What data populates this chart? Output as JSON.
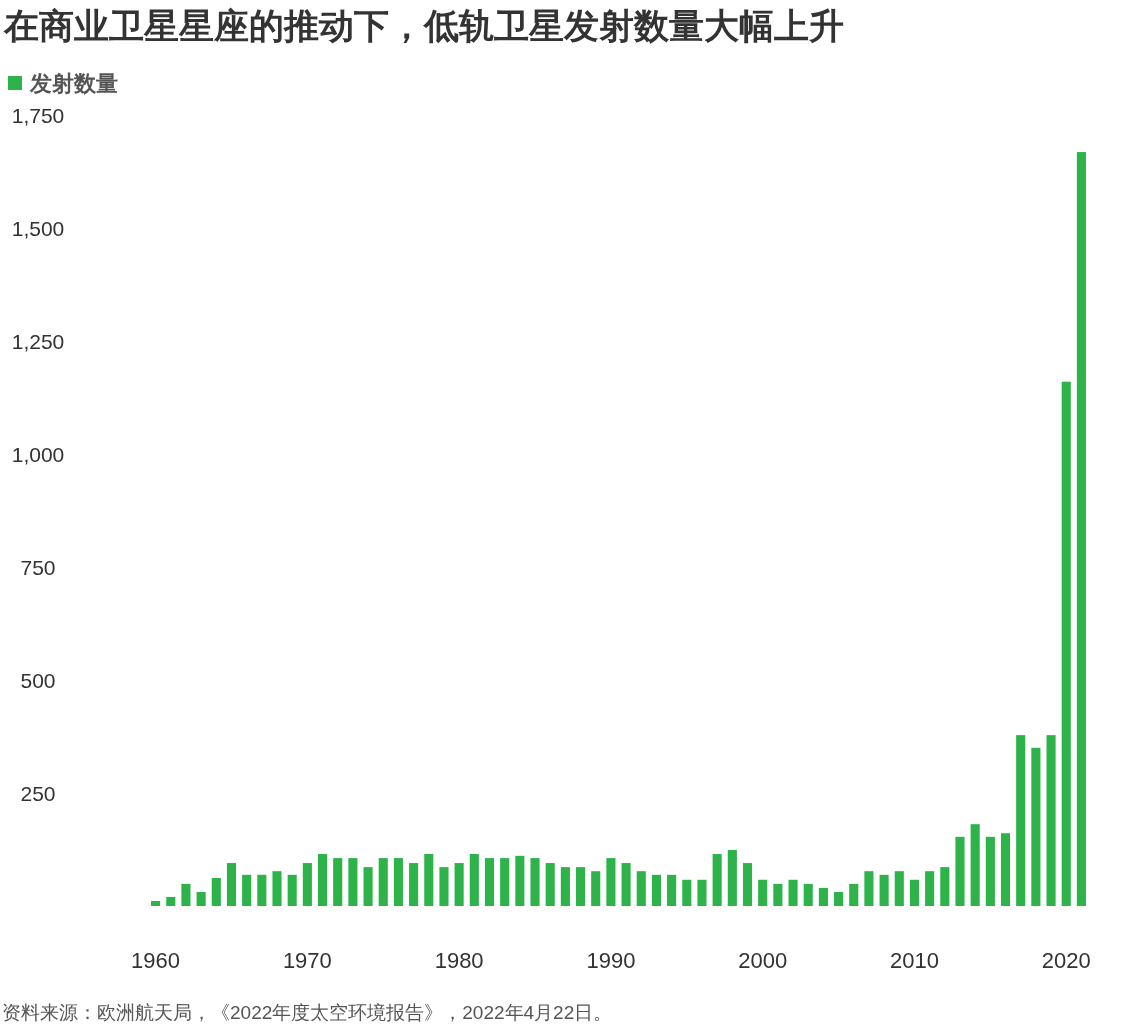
{
  "chart_data": {
    "type": "bar",
    "title": "在商业卫星星座的推动下，低轨卫星发射数量大幅上升",
    "categories": [
      "1960",
      null,
      null,
      null,
      null,
      null,
      null,
      null,
      null,
      null,
      "1970",
      null,
      null,
      null,
      null,
      null,
      null,
      null,
      null,
      null,
      "1980",
      null,
      null,
      null,
      null,
      null,
      null,
      null,
      null,
      null,
      "1990",
      null,
      null,
      null,
      null,
      null,
      null,
      null,
      null,
      null,
      "2000",
      null,
      null,
      null,
      null,
      null,
      null,
      null,
      null,
      null,
      "2010",
      null,
      null,
      null,
      null,
      null,
      null,
      null,
      null,
      null,
      "2020",
      null
    ],
    "series": [
      {
        "name": "发射数量",
        "color": "#2db34a",
        "values": [
          11,
          20,
          49,
          31,
          62,
          95,
          69,
          69,
          77,
          69,
          95,
          115,
          106,
          106,
          86,
          106,
          106,
          95,
          115,
          86,
          95,
          115,
          106,
          106,
          111,
          106,
          95,
          86,
          86,
          77,
          106,
          95,
          77,
          69,
          69,
          58,
          58,
          115,
          124,
          95,
          58,
          49,
          58,
          49,
          40,
          31,
          49,
          77,
          69,
          77,
          58,
          77,
          86,
          153,
          181,
          153,
          161,
          378,
          350,
          378,
          1160,
          1668
        ]
      }
    ],
    "ylim": [
      0,
      1750
    ],
    "yticks": [
      250,
      500,
      750,
      {
        "value": 1000,
        "label": "1,000"
      },
      {
        "value": 1250,
        "label": "1,250"
      },
      {
        "value": 1500,
        "label": "1,500"
      },
      {
        "value": 1750,
        "label": "1,750"
      }
    ],
    "legend": "top left",
    "annotations": [
      "资料来源：欧洲航天局，《2022年度太空环境报告》，2022年4月22日。"
    ]
  }
}
